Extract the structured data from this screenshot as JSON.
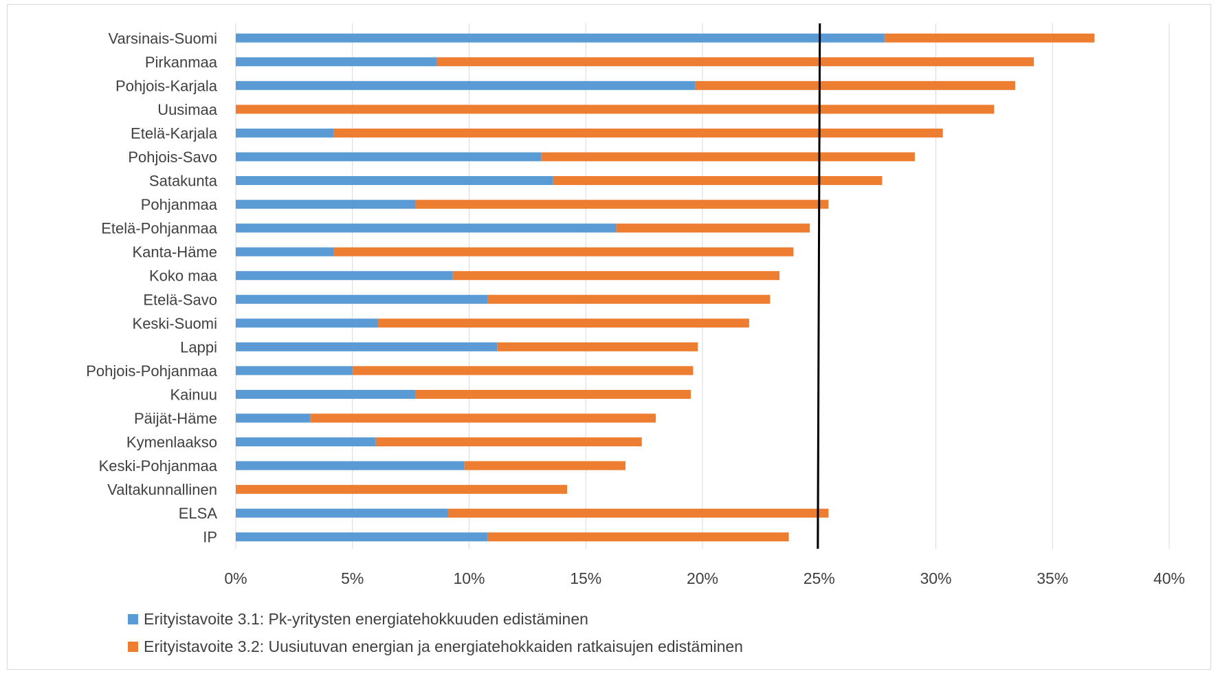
{
  "chart_data": {
    "type": "bar",
    "orientation": "horizontal",
    "stacked": true,
    "categories": [
      "Varsinais-Suomi",
      "Pirkanmaa",
      "Pohjois-Karjala",
      "Uusimaa",
      "Etelä-Karjala",
      "Pohjois-Savo",
      "Satakunta",
      "Pohjanmaa",
      "Etelä-Pohjanmaa",
      "Kanta-Häme",
      "Koko maa",
      "Etelä-Savo",
      "Keski-Suomi",
      "Lappi",
      "Pohjois-Pohjanmaa",
      "Kainuu",
      "Päijät-Häme",
      "Kymenlaakso",
      "Keski-Pohjanmaa",
      "Valtakunnallinen",
      "ELSA",
      "IP"
    ],
    "series": [
      {
        "name": "Erityistavoite 3.1: Pk-yritysten energiatehokkuuden edistäminen",
        "color": "#5b9bd5",
        "values": [
          27.8,
          8.6,
          19.7,
          0,
          4.2,
          13.1,
          13.6,
          7.7,
          16.3,
          4.2,
          9.3,
          10.8,
          6.1,
          11.2,
          5.0,
          7.7,
          3.2,
          6.0,
          9.8,
          0,
          9.1,
          10.8
        ]
      },
      {
        "name": "Erityistavoite 3.2: Uusiutuvan energian ja energiatehokkaiden ratkaisujen edistäminen",
        "color": "#ed7d31",
        "values": [
          9.0,
          25.6,
          13.7,
          32.5,
          26.1,
          16.0,
          14.1,
          17.7,
          8.3,
          19.7,
          14.0,
          12.1,
          15.9,
          8.6,
          14.6,
          11.8,
          14.8,
          11.4,
          6.9,
          14.2,
          16.3,
          12.9
        ]
      }
    ],
    "x_ticks": [
      "0%",
      "5%",
      "10%",
      "15%",
      "20%",
      "25%",
      "30%",
      "35%",
      "40%"
    ],
    "xlim": [
      0,
      40
    ],
    "reference_line": 25,
    "grid": "vertical",
    "legend_position": "bottom"
  }
}
